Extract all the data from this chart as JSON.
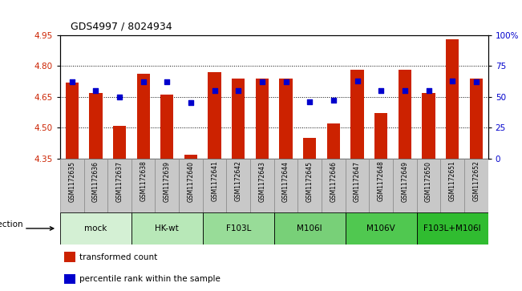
{
  "title": "GDS4997 / 8024934",
  "samples": [
    "GSM1172635",
    "GSM1172636",
    "GSM1172637",
    "GSM1172638",
    "GSM1172639",
    "GSM1172640",
    "GSM1172641",
    "GSM1172642",
    "GSM1172643",
    "GSM1172644",
    "GSM1172645",
    "GSM1172646",
    "GSM1172647",
    "GSM1172648",
    "GSM1172649",
    "GSM1172650",
    "GSM1172651",
    "GSM1172652"
  ],
  "transformed_counts": [
    4.72,
    4.67,
    4.51,
    4.76,
    4.66,
    4.37,
    4.77,
    4.74,
    4.74,
    4.74,
    4.45,
    4.52,
    4.78,
    4.57,
    4.78,
    4.67,
    4.93,
    4.74
  ],
  "percentile_ranks": [
    62,
    55,
    50,
    62,
    62,
    45,
    55,
    55,
    62,
    62,
    46,
    47,
    63,
    55,
    55,
    55,
    63,
    62
  ],
  "groups": [
    {
      "label": "mock",
      "start": 0,
      "end": 2,
      "color": "#d4f0d4"
    },
    {
      "label": "HK-wt",
      "start": 3,
      "end": 5,
      "color": "#b8e8b8"
    },
    {
      "label": "F103L",
      "start": 6,
      "end": 8,
      "color": "#98dc98"
    },
    {
      "label": "M106I",
      "start": 9,
      "end": 11,
      "color": "#78d078"
    },
    {
      "label": "M106V",
      "start": 12,
      "end": 14,
      "color": "#50c850"
    },
    {
      "label": "F103L+M106I",
      "start": 15,
      "end": 17,
      "color": "#30bc30"
    }
  ],
  "ylim_left": [
    4.35,
    4.95
  ],
  "ylim_right": [
    0,
    100
  ],
  "yticks_left": [
    4.35,
    4.5,
    4.65,
    4.8,
    4.95
  ],
  "yticks_right": [
    0,
    25,
    50,
    75,
    100
  ],
  "ytick_labels_right": [
    "0",
    "25",
    "50",
    "75",
    "100%"
  ],
  "bar_color": "#cc2200",
  "dot_color": "#0000cc",
  "bar_width": 0.55,
  "infection_label": "infection",
  "legend_bar_label": "transformed count",
  "legend_dot_label": "percentile rank within the sample",
  "tick_label_color_left": "#cc2200",
  "tick_label_color_right": "#0000cc",
  "sample_box_color": "#c8c8c8",
  "sample_box_edge": "#888888"
}
